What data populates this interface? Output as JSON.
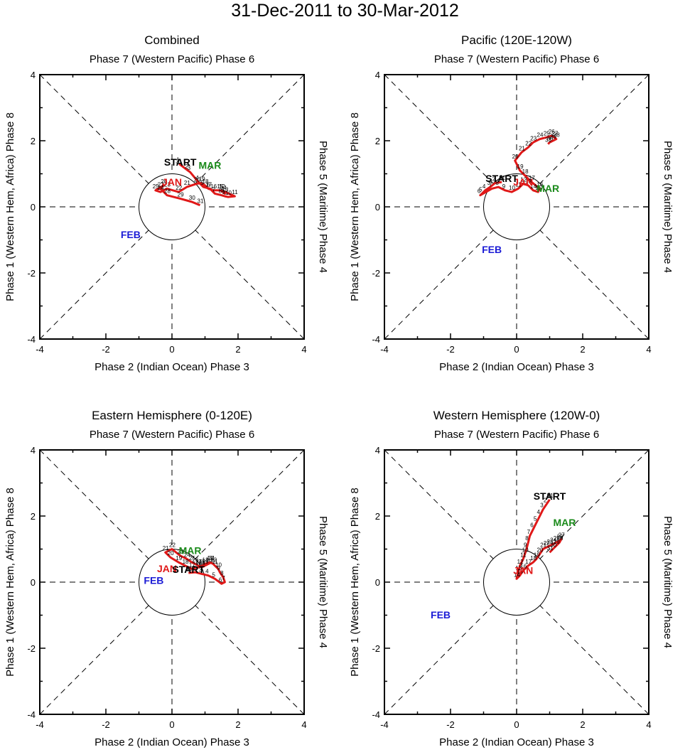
{
  "title": "31-Dec-2011 to 30-Mar-2012",
  "colors": {
    "Dec": "#d52020",
    "Jan": "#e01818",
    "Feb": "#1b1bd6",
    "Mar": "#1a8a1a",
    "start": "#000000"
  },
  "axis_labels": {
    "top": "Phase 7 (Western Pacific) Phase 6",
    "bottom": "Phase 2 (Indian Ocean) Phase 3",
    "left": "Phase 1 (Western Hem, Africa) Phase 8",
    "right": "Phase 5 (Maritime) Phase 4"
  },
  "start_label": "START",
  "chart_data": [
    {
      "type": "line",
      "title": "Combined",
      "xlim": [
        -4,
        4
      ],
      "ylim": [
        -4,
        4
      ],
      "xticks": [
        "-4",
        "-2",
        "0",
        "2",
        "4"
      ],
      "yticks": [
        "-4",
        "-2",
        "0",
        "2",
        "4"
      ],
      "unit_circle_radius": 1,
      "month_labels": [
        {
          "text": "JAN",
          "x": 0.0,
          "y": 0.65,
          "color": "Jan"
        },
        {
          "text": "FEB",
          "x": -1.25,
          "y": -0.95,
          "color": "Feb"
        },
        {
          "text": "MAR",
          "x": 1.15,
          "y": 1.15,
          "color": "Mar"
        }
      ],
      "start_point": {
        "x": 0.25,
        "y": 1.25
      },
      "series": [
        {
          "name": "Jan",
          "color": "Jan",
          "days": [
            1,
            2,
            3,
            4,
            5,
            6,
            7,
            8,
            9,
            10,
            11,
            12,
            13,
            14,
            15,
            16,
            17,
            18,
            19,
            20,
            21,
            22,
            23,
            24,
            25,
            26,
            27,
            28,
            29,
            30,
            31
          ],
          "x": [
            0.22,
            0.48,
            0.55,
            0.8,
            0.95,
            1.15,
            1.3,
            1.5,
            1.6,
            1.7,
            1.9,
            1.5,
            1.6,
            1.55,
            1.45,
            1.25,
            1.1,
            1.0,
            0.9,
            0.75,
            0.45,
            0.2,
            -0.15,
            -0.35,
            -0.5,
            -0.25,
            -0.35,
            -0.15,
            0.25,
            0.6,
            0.85
          ],
          "y": [
            1.3,
            1.1,
            1.05,
            0.75,
            0.6,
            0.55,
            0.4,
            0.35,
            0.32,
            0.3,
            0.32,
            0.5,
            0.4,
            0.45,
            0.5,
            0.5,
            0.55,
            0.65,
            0.72,
            0.7,
            0.6,
            0.45,
            0.55,
            0.45,
            0.5,
            0.65,
            0.55,
            0.35,
            0.25,
            0.15,
            0.05
          ]
        },
        {
          "name": "Dec",
          "color": "Dec",
          "days": [
            31
          ],
          "x": [
            0.2
          ],
          "y": [
            1.25
          ]
        }
      ]
    },
    {
      "type": "line",
      "title": "Pacific (120E-120W)",
      "xlim": [
        -4,
        4
      ],
      "ylim": [
        -4,
        4
      ],
      "xticks": [
        "-4",
        "-2",
        "0",
        "2",
        "4"
      ],
      "yticks": [
        "-4",
        "-2",
        "0",
        "2",
        "4"
      ],
      "unit_circle_radius": 1,
      "month_labels": [
        {
          "text": "JAN",
          "x": 0.2,
          "y": 0.65,
          "color": "Jan"
        },
        {
          "text": "FEB",
          "x": -0.75,
          "y": -1.4,
          "color": "Feb"
        },
        {
          "text": "MAR",
          "x": 0.95,
          "y": 0.45,
          "color": "Mar"
        }
      ],
      "start_point": {
        "x": -0.45,
        "y": 0.75
      },
      "series": [
        {
          "name": "Jan",
          "color": "Jan",
          "days": [
            1,
            2,
            3,
            4,
            5,
            6,
            7,
            8,
            9,
            10,
            11,
            12,
            13,
            14,
            15,
            16,
            17,
            18,
            19,
            20,
            21,
            22,
            23,
            24,
            25,
            26,
            27,
            28,
            29,
            30,
            31
          ],
          "x": [
            -0.45,
            -0.65,
            -0.8,
            -0.95,
            -1.05,
            -1.1,
            -0.75,
            -0.55,
            -0.35,
            -0.15,
            0.05,
            0.2,
            0.35,
            0.5,
            0.65,
            0.7,
            0.45,
            0.25,
            0.1,
            -0.05,
            0.15,
            0.35,
            0.5,
            0.7,
            0.9,
            1.05,
            1.15,
            1.2,
            1.1,
            1.0,
            0.95
          ],
          "y": [
            0.75,
            0.72,
            0.6,
            0.5,
            0.4,
            0.35,
            0.55,
            0.6,
            0.5,
            0.45,
            0.55,
            0.7,
            0.65,
            0.5,
            0.45,
            0.55,
            0.75,
            0.95,
            1.1,
            1.4,
            1.65,
            1.8,
            1.95,
            2.05,
            2.1,
            2.15,
            2.1,
            2.05,
            2.0,
            1.95,
            1.9
          ]
        },
        {
          "name": "Dec",
          "color": "Dec",
          "days": [
            31
          ],
          "x": [
            -0.45
          ],
          "y": [
            0.75
          ]
        }
      ]
    },
    {
      "type": "line",
      "title": "Eastern Hemisphere (0-120E)",
      "xlim": [
        -4,
        4
      ],
      "ylim": [
        -4,
        4
      ],
      "xticks": [
        "-4",
        "-2",
        "0",
        "2",
        "4"
      ],
      "yticks": [
        "-4",
        "-2",
        "0",
        "2",
        "4"
      ],
      "unit_circle_radius": 1,
      "month_labels": [
        {
          "text": "JAN",
          "x": -0.15,
          "y": 0.3,
          "color": "Jan"
        },
        {
          "text": "FEB",
          "x": -0.55,
          "y": -0.05,
          "color": "Feb"
        },
        {
          "text": "MAR",
          "x": 0.55,
          "y": 0.85,
          "color": "Mar"
        }
      ],
      "start_point": {
        "x": 0.5,
        "y": 0.28
      },
      "series": [
        {
          "name": "Jan",
          "color": "Jan",
          "days": [
            1,
            2,
            3,
            4,
            5,
            6,
            7,
            8,
            9,
            10,
            11,
            12,
            13,
            14,
            15,
            16,
            17,
            18,
            19,
            20,
            21,
            22,
            23,
            24,
            25,
            26,
            27,
            28,
            29,
            30,
            31
          ],
          "x": [
            0.5,
            0.7,
            0.9,
            1.1,
            1.3,
            1.5,
            1.6,
            1.55,
            1.45,
            1.4,
            1.3,
            1.25,
            1.15,
            1.0,
            0.9,
            0.8,
            0.6,
            0.4,
            0.2,
            -0.05,
            -0.2,
            0.0,
            0.25,
            0.45,
            0.6,
            0.7,
            0.8,
            0.9,
            1.0,
            1.1,
            1.2
          ],
          "y": [
            0.28,
            0.3,
            0.25,
            0.2,
            0.1,
            -0.05,
            0.0,
            0.15,
            0.3,
            0.4,
            0.5,
            0.55,
            0.6,
            0.55,
            0.5,
            0.45,
            0.4,
            0.5,
            0.6,
            0.75,
            0.9,
            1.0,
            0.8,
            0.7,
            0.6,
            0.55,
            0.5,
            0.45,
            0.5,
            0.55,
            0.6
          ]
        },
        {
          "name": "Dec",
          "color": "Dec",
          "days": [
            31
          ],
          "x": [
            0.5
          ],
          "y": [
            0.28
          ]
        }
      ]
    },
    {
      "type": "line",
      "title": "Western Hemisphere (120W-0)",
      "xlim": [
        -4,
        4
      ],
      "ylim": [
        -4,
        4
      ],
      "xticks": [
        "-4",
        "-2",
        "0",
        "2",
        "4"
      ],
      "yticks": [
        "-4",
        "-2",
        "0",
        "2",
        "4"
      ],
      "unit_circle_radius": 1,
      "month_labels": [
        {
          "text": "JAN",
          "x": 0.2,
          "y": 0.25,
          "color": "Jan"
        },
        {
          "text": "FEB",
          "x": -2.3,
          "y": -1.1,
          "color": "Feb"
        },
        {
          "text": "MAR",
          "x": 1.45,
          "y": 1.7,
          "color": "Mar"
        }
      ],
      "start_point": {
        "x": 1.0,
        "y": 2.5
      },
      "series": [
        {
          "name": "Jan",
          "color": "Jan",
          "days": [
            1,
            2,
            3,
            4,
            5,
            6,
            7,
            8,
            9,
            10,
            11,
            12,
            13,
            14,
            15,
            16,
            17,
            18,
            19,
            20,
            21,
            22,
            23,
            24,
            25,
            26,
            27,
            28,
            29,
            30,
            31
          ],
          "x": [
            1.0,
            0.9,
            0.8,
            0.7,
            0.6,
            0.5,
            0.4,
            0.35,
            0.3,
            0.25,
            0.2,
            0.1,
            0.05,
            0.0,
            0.1,
            0.2,
            0.35,
            0.5,
            0.6,
            0.7,
            0.8,
            0.9,
            1.0,
            1.1,
            1.2,
            1.3,
            1.35,
            1.3,
            1.2,
            1.1,
            1.0
          ],
          "y": [
            2.5,
            2.35,
            2.2,
            2.0,
            1.8,
            1.6,
            1.4,
            1.2,
            1.0,
            0.85,
            0.7,
            0.5,
            0.3,
            0.1,
            0.2,
            0.35,
            0.5,
            0.6,
            0.7,
            0.85,
            1.0,
            1.05,
            1.1,
            1.15,
            1.2,
            1.25,
            1.3,
            1.2,
            1.1,
            1.0,
            0.9
          ]
        },
        {
          "name": "Dec",
          "color": "Dec",
          "days": [
            31
          ],
          "x": [
            1.0
          ],
          "y": [
            2.5
          ]
        }
      ]
    }
  ]
}
